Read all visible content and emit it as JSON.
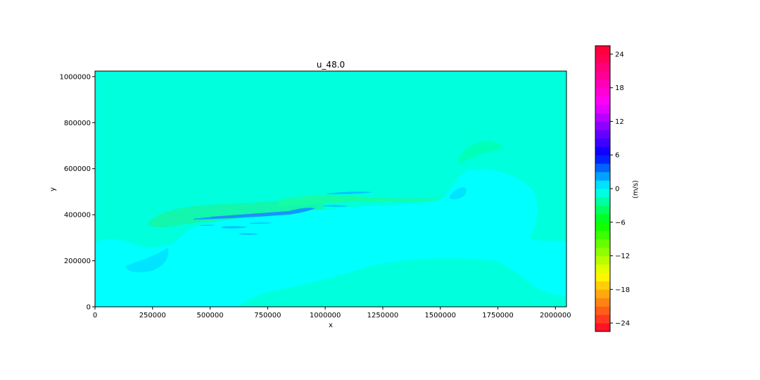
{
  "chart_data": {
    "type": "heatmap",
    "title": "u_48.0",
    "xlabel": "x",
    "ylabel": "y",
    "xlim": [
      0,
      2048000
    ],
    "ylim": [
      0,
      1024000
    ],
    "x_ticks": [
      0,
      250000,
      500000,
      750000,
      1000000,
      1250000,
      1500000,
      1750000,
      2000000
    ],
    "y_ticks": [
      0,
      200000,
      400000,
      600000,
      800000,
      1000000
    ],
    "grid": false,
    "colorbar": {
      "label": "(m/s)",
      "range": [
        -25.5,
        25.5
      ],
      "ticks": [
        -24,
        -18,
        -12,
        -6,
        0,
        6,
        12,
        18,
        24
      ],
      "colormap": "gist_rainbow",
      "level_step": 1.5
    },
    "field": {
      "background_value": -1.8,
      "background_color": "#00ffdd",
      "regions": [
        {
          "name": "lower cyan region",
          "value": 0.4,
          "color": "#00ffff"
        },
        {
          "name": "southwest eddy",
          "value": 2.0,
          "color": "#00e4ff"
        },
        {
          "name": "northeast eddy",
          "value": -3.2,
          "color": "#00ffb8"
        },
        {
          "name": "east eddy",
          "value": 2.0,
          "color": "#00e4ff"
        },
        {
          "name": "central jet streaks",
          "value": 6.0,
          "color": "#0a9cff"
        },
        {
          "name": "upper green band",
          "value": -3.5,
          "color": "#14fca8"
        },
        {
          "name": "western green band",
          "value": -3.0,
          "color": "#12f6ad"
        }
      ]
    }
  }
}
